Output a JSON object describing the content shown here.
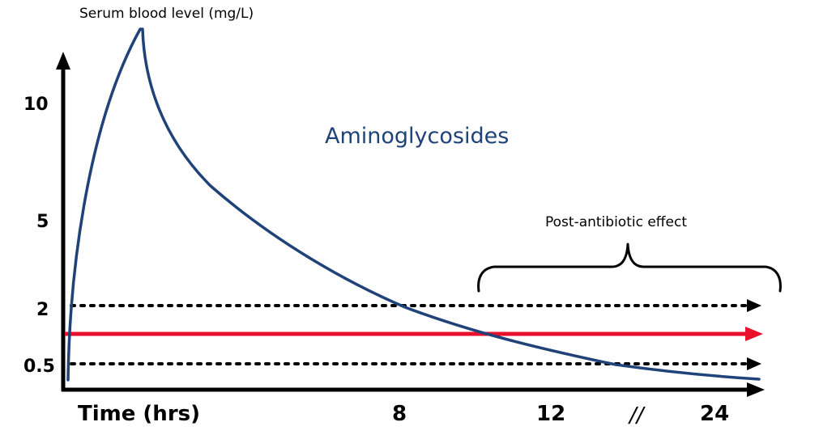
{
  "y_axis_title": "Serum blood level (mg/L)",
  "y_ticks": [
    "10",
    "5",
    "2",
    "0.5"
  ],
  "x_axis_title": "Time (hrs)",
  "x_ticks": [
    "8",
    "12",
    "24"
  ],
  "axis_break": "//",
  "drug_label": "Aminoglycosides",
  "pae_label": "Post-antibiotic effect",
  "colors": {
    "curve": "#1f4279",
    "mic_line": "#e8102d",
    "axis": "#000000",
    "drug_label": "#1f4279"
  }
}
